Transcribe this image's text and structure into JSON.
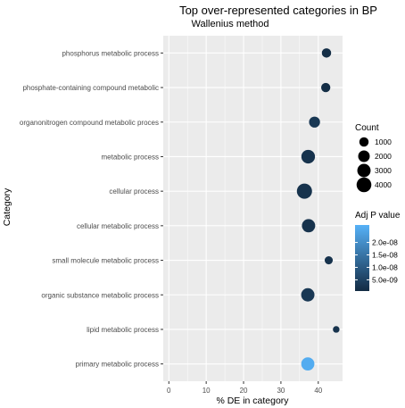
{
  "chart_data": {
    "type": "scatter",
    "title": "Top over-represented categories in BP",
    "subtitle": "Wallenius  method",
    "xlabel": "% DE in category",
    "ylabel": "Category",
    "xlim": [
      -1.5,
      46.5
    ],
    "xticks": [
      0,
      10,
      20,
      30,
      40
    ],
    "grid": true,
    "legend_position": "right",
    "colors": {
      "panel": "#ebebeb",
      "grid_major": "#ffffff",
      "gradient_low": "#132b43",
      "gradient_high": "#56b1f7",
      "tick_label": "#4d4d4d"
    },
    "categories": [
      "phosphorus metabolic process",
      "phosphate-containing compound metabolic",
      "organonitrogen compound metabolic proces",
      "metabolic process",
      "cellular process",
      "cellular metabolic process",
      "small molecule metabolic process",
      "organic substance metabolic process",
      "lipid metabolic process",
      "primary metabolic process"
    ],
    "points": [
      {
        "category": "phosphorus metabolic process",
        "x": 42.2,
        "count": 1000,
        "adj_p": 1e-09
      },
      {
        "category": "phosphate-containing compound metabolic",
        "x": 42.0,
        "count": 950,
        "adj_p": 1e-09
      },
      {
        "category": "organonitrogen compound metabolic proces",
        "x": 39.0,
        "count": 1700,
        "adj_p": 3e-09
      },
      {
        "category": "metabolic process",
        "x": 37.3,
        "count": 3200,
        "adj_p": 2e-09
      },
      {
        "category": "cellular process",
        "x": 36.3,
        "count": 4300,
        "adj_p": 2e-09
      },
      {
        "category": "cellular metabolic process",
        "x": 37.4,
        "count": 3000,
        "adj_p": 2e-09
      },
      {
        "category": "small molecule metabolic process",
        "x": 42.8,
        "count": 600,
        "adj_p": 2e-09
      },
      {
        "category": "organic substance metabolic process",
        "x": 37.2,
        "count": 3000,
        "adj_p": 3e-09
      },
      {
        "category": "lipid metabolic process",
        "x": 44.8,
        "count": 250,
        "adj_p": 2e-09
      },
      {
        "category": "primary metabolic process",
        "x": 37.2,
        "count": 2900,
        "adj_p": 2.6e-08
      }
    ],
    "size_legend": {
      "title": "Count",
      "entries": [
        {
          "label": "1000",
          "value": 1000
        },
        {
          "label": "2000",
          "value": 2000
        },
        {
          "label": "3000",
          "value": 3000
        },
        {
          "label": "4000",
          "value": 4000
        }
      ]
    },
    "color_legend": {
      "title": "Adj P value",
      "min": 5e-10,
      "max": 2.7e-08,
      "ticks": [
        {
          "label": "2.0e-08",
          "value": 2e-08
        },
        {
          "label": "1.5e-08",
          "value": 1.5e-08
        },
        {
          "label": "1.0e-08",
          "value": 1e-08
        },
        {
          "label": "5.0e-09",
          "value": 5e-09
        }
      ]
    }
  }
}
